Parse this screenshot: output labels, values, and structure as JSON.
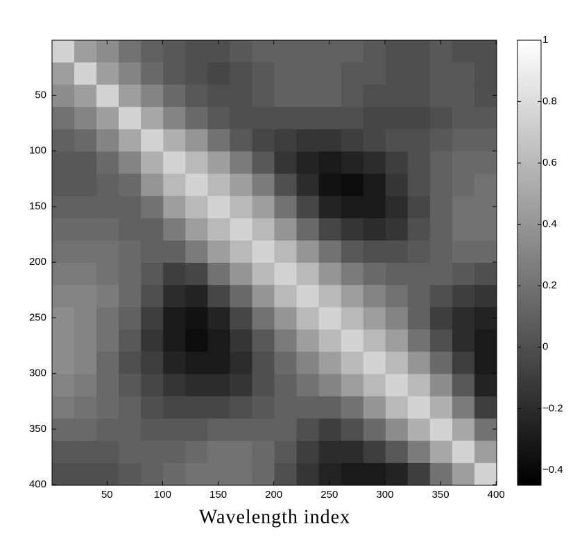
{
  "chart_data": {
    "type": "heatmap",
    "xlabel": "Wavelength index",
    "x": [
      10.5,
      30.5,
      50.5,
      70.5,
      90.5,
      110.5,
      130.5,
      150.5,
      170.5,
      190.5,
      210.5,
      230.5,
      250.5,
      270.5,
      290.5,
      310.5,
      330.5,
      350.5,
      370.5,
      390.5
    ],
    "y": [
      10.5,
      30.5,
      50.5,
      70.5,
      90.5,
      110.5,
      130.5,
      150.5,
      170.5,
      190.5,
      210.5,
      230.5,
      250.5,
      270.5,
      290.5,
      310.5,
      330.5,
      350.5,
      370.5,
      390.5
    ],
    "xlim": [
      0.5,
      400.5
    ],
    "ylim": [
      400.5,
      0.5
    ],
    "xticks": [
      50,
      100,
      150,
      200,
      250,
      300,
      350,
      400
    ],
    "yticks": [
      50,
      100,
      150,
      200,
      250,
      300,
      350,
      400
    ],
    "clim": [
      -0.45,
      1
    ],
    "cticks": [
      {
        "value": -0.4,
        "label": "−0.4"
      },
      {
        "value": -0.2,
        "label": "−0.2"
      },
      0,
      0.2,
      0.4,
      0.6,
      0.8,
      1
    ],
    "colormap": "gray",
    "values": [
      [
        0.75,
        0.45,
        0.35,
        0.2,
        0.1,
        0.05,
        0.0,
        0.0,
        0.05,
        0.1,
        0.1,
        0.1,
        0.1,
        0.1,
        0.05,
        0.0,
        0.0,
        0.05,
        0.0,
        0.0
      ],
      [
        0.45,
        0.75,
        0.45,
        0.3,
        0.15,
        0.05,
        0.0,
        -0.05,
        0.0,
        0.05,
        0.1,
        0.1,
        0.1,
        0.05,
        0.05,
        0.0,
        0.0,
        0.05,
        0.05,
        0.0
      ],
      [
        0.35,
        0.45,
        0.75,
        0.45,
        0.3,
        0.15,
        0.05,
        0.0,
        0.0,
        0.05,
        0.1,
        0.1,
        0.1,
        0.05,
        0.0,
        0.0,
        0.0,
        0.05,
        0.05,
        0.0
      ],
      [
        0.2,
        0.3,
        0.45,
        0.75,
        0.5,
        0.3,
        0.15,
        0.05,
        0.0,
        0.0,
        0.0,
        0.0,
        0.0,
        0.0,
        -0.05,
        -0.05,
        -0.05,
        0.0,
        0.05,
        0.05
      ],
      [
        0.1,
        0.15,
        0.3,
        0.5,
        0.75,
        0.55,
        0.4,
        0.2,
        0.05,
        -0.05,
        -0.1,
        -0.15,
        -0.15,
        -0.1,
        -0.05,
        0.0,
        0.0,
        0.05,
        0.1,
        0.1
      ],
      [
        0.05,
        0.05,
        0.15,
        0.3,
        0.55,
        0.75,
        0.6,
        0.45,
        0.25,
        0.05,
        -0.15,
        -0.25,
        -0.3,
        -0.25,
        -0.2,
        -0.1,
        0.0,
        0.1,
        0.15,
        0.15
      ],
      [
        0.05,
        0.05,
        0.1,
        0.15,
        0.4,
        0.6,
        0.75,
        0.6,
        0.45,
        0.25,
        0.0,
        -0.2,
        -0.35,
        -0.38,
        -0.3,
        -0.15,
        0.0,
        0.1,
        0.15,
        0.2
      ],
      [
        0.1,
        0.1,
        0.1,
        0.1,
        0.2,
        0.45,
        0.6,
        0.75,
        0.6,
        0.45,
        0.2,
        -0.05,
        -0.25,
        -0.3,
        -0.3,
        -0.2,
        -0.05,
        0.1,
        0.2,
        0.2
      ],
      [
        0.15,
        0.15,
        0.15,
        0.1,
        0.1,
        0.25,
        0.45,
        0.6,
        0.75,
        0.6,
        0.4,
        0.15,
        -0.05,
        -0.15,
        -0.2,
        -0.15,
        0.0,
        0.1,
        0.2,
        0.2
      ],
      [
        0.2,
        0.2,
        0.2,
        0.15,
        0.1,
        0.1,
        0.25,
        0.45,
        0.6,
        0.75,
        0.6,
        0.4,
        0.2,
        0.05,
        0.0,
        0.0,
        0.05,
        0.1,
        0.15,
        0.15
      ],
      [
        0.25,
        0.25,
        0.2,
        0.15,
        0.05,
        -0.1,
        -0.05,
        0.2,
        0.4,
        0.6,
        0.75,
        0.6,
        0.4,
        0.25,
        0.15,
        0.1,
        0.1,
        0.1,
        0.05,
        0.0
      ],
      [
        0.3,
        0.3,
        0.25,
        0.15,
        0.0,
        -0.2,
        -0.25,
        -0.05,
        0.15,
        0.4,
        0.6,
        0.75,
        0.6,
        0.45,
        0.3,
        0.2,
        0.1,
        0.0,
        -0.1,
        -0.15
      ],
      [
        0.35,
        0.3,
        0.2,
        0.1,
        -0.1,
        -0.3,
        -0.35,
        -0.25,
        -0.05,
        0.2,
        0.4,
        0.6,
        0.75,
        0.6,
        0.45,
        0.3,
        0.1,
        -0.1,
        -0.2,
        -0.25
      ],
      [
        0.35,
        0.3,
        0.2,
        0.05,
        -0.15,
        -0.3,
        -0.38,
        -0.3,
        -0.15,
        0.05,
        0.25,
        0.45,
        0.6,
        0.75,
        0.6,
        0.45,
        0.2,
        0.0,
        -0.2,
        -0.3
      ],
      [
        0.35,
        0.3,
        0.15,
        0.0,
        -0.1,
        -0.25,
        -0.3,
        -0.3,
        -0.2,
        0.0,
        0.15,
        0.3,
        0.45,
        0.6,
        0.75,
        0.6,
        0.4,
        0.15,
        -0.1,
        -0.3
      ],
      [
        0.3,
        0.25,
        0.15,
        0.05,
        -0.05,
        -0.15,
        -0.2,
        -0.2,
        -0.15,
        0.0,
        0.1,
        0.2,
        0.3,
        0.45,
        0.6,
        0.75,
        0.6,
        0.35,
        0.05,
        -0.25
      ],
      [
        0.25,
        0.2,
        0.15,
        0.1,
        0.0,
        -0.05,
        -0.05,
        -0.05,
        0.0,
        0.05,
        0.1,
        0.1,
        0.1,
        0.2,
        0.4,
        0.6,
        0.75,
        0.55,
        0.25,
        -0.1
      ],
      [
        0.15,
        0.15,
        0.1,
        0.1,
        0.05,
        0.05,
        0.05,
        0.1,
        0.1,
        0.1,
        0.1,
        0.0,
        -0.1,
        0.0,
        0.15,
        0.35,
        0.55,
        0.75,
        0.5,
        0.2
      ],
      [
        0.05,
        0.05,
        0.05,
        0.1,
        0.1,
        0.1,
        0.15,
        0.2,
        0.2,
        0.15,
        0.05,
        -0.1,
        -0.2,
        -0.2,
        -0.1,
        0.05,
        0.25,
        0.5,
        0.75,
        0.45
      ],
      [
        0.0,
        0.0,
        0.0,
        0.05,
        0.1,
        0.15,
        0.2,
        0.2,
        0.2,
        0.15,
        0.0,
        -0.15,
        -0.25,
        -0.3,
        -0.3,
        -0.25,
        -0.1,
        0.2,
        0.45,
        0.75
      ]
    ]
  }
}
